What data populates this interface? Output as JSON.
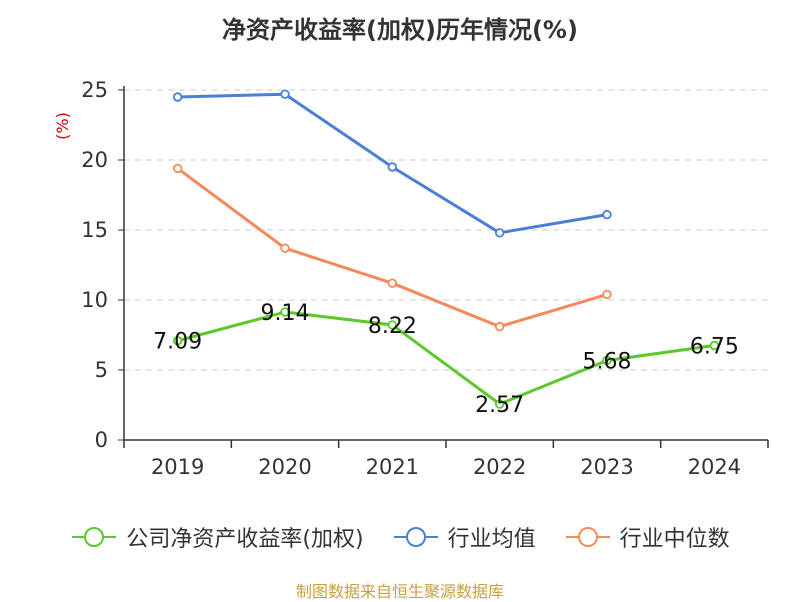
{
  "chart_data": {
    "type": "line",
    "title": "净资产收益率(加权)历年情况(%)",
    "ylabel": "(%)",
    "xlabel": "",
    "categories": [
      "2019",
      "2020",
      "2021",
      "2022",
      "2023",
      "2024"
    ],
    "ylim": [
      0,
      25
    ],
    "yticks": [
      0,
      5,
      10,
      15,
      20,
      25
    ],
    "grid": true,
    "legend_position": "bottom",
    "series": [
      {
        "name": "公司净资产收益率(加权)",
        "color": "#5cc82a",
        "values": [
          7.09,
          9.14,
          8.22,
          2.57,
          5.68,
          6.75
        ],
        "labels": [
          "7.09",
          "9.14",
          "8.22",
          "2.57",
          "5.68",
          "6.75"
        ]
      },
      {
        "name": "行业均值",
        "color": "#4a7fd6",
        "values": [
          24.5,
          24.7,
          19.5,
          14.8,
          16.1,
          null
        ]
      },
      {
        "name": "行业中位数",
        "color": "#f5895a",
        "values": [
          19.4,
          13.7,
          11.2,
          8.1,
          10.4,
          null
        ]
      }
    ]
  },
  "source": "制图数据来自恒生聚源数据库",
  "colors": {
    "ylabel": "#cc0000",
    "axis": "#333333",
    "grid": "#cccccc"
  }
}
